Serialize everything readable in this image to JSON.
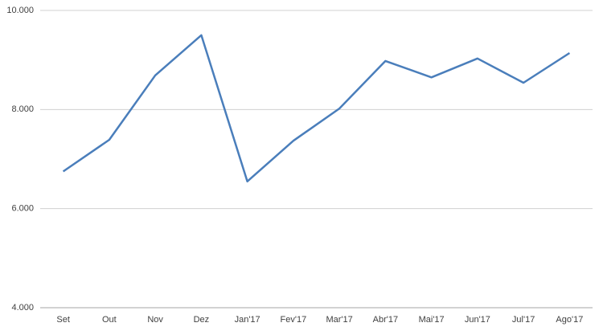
{
  "chart_data": {
    "type": "line",
    "categories": [
      "Set",
      "Out",
      "Nov",
      "Dez",
      "Jan'17",
      "Fev'17",
      "Mar'17",
      "Abr'17",
      "Mai'17",
      "Jun'17",
      "Jul'17",
      "Ago'17"
    ],
    "series": [
      {
        "color": "#4a7ebb",
        "values": [
          6750,
          7390,
          8690,
          9500,
          6550,
          7370,
          8020,
          8980,
          8650,
          9030,
          8540,
          9140
        ]
      }
    ],
    "ylim": [
      4000,
      10000
    ],
    "yticks": [
      {
        "value": 4000,
        "label": "4.000"
      },
      {
        "value": 6000,
        "label": "6.000"
      },
      {
        "value": 8000,
        "label": "8.000"
      },
      {
        "value": 10000,
        "label": "10.000"
      }
    ],
    "grid": true
  }
}
